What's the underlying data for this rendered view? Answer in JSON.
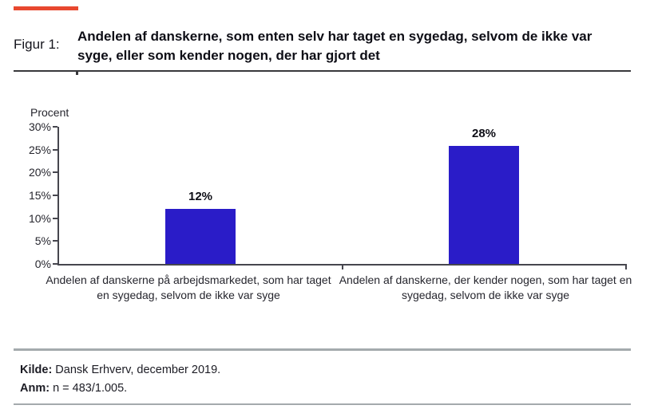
{
  "figure": {
    "label": "Figur 1:",
    "title": "Andelen af danskerne, som enten selv har taget en sygedag, selvom de ikke var syge, eller som kender nogen, der har gjort det"
  },
  "chart_data": {
    "type": "bar",
    "title": "Andelen af danskerne, som enten selv har taget en sygedag, selvom de ikke var syge, eller som kender nogen, der har gjort det",
    "ylabel": "Procent",
    "xlabel": "",
    "categories": [
      "Andelen af danskerne på arbejdsmarkedet, som har taget en sygedag, selvom de ikke var syge",
      "Andelen af danskerne, der kender nogen, som har taget en sygedag, selvom de ikke var syge"
    ],
    "values": [
      12,
      28
    ],
    "value_labels": [
      "12%",
      "28%"
    ],
    "y_ticks": [
      "30%",
      "25%",
      "20%",
      "15%",
      "10%",
      "5%",
      "0%"
    ],
    "ylim": [
      0,
      30
    ],
    "grid": false,
    "legend_position": "none",
    "bar_color": "#2a1cc8"
  },
  "footer": {
    "source_label": "Kilde:",
    "source_text": " Dansk Erhverv, december 2019.",
    "note_label": "Anm:",
    "note_text": " n = 483/1.005."
  },
  "colors": {
    "accent_red": "#e8482f",
    "bar_blue": "#2a1cc8",
    "axis_line": "#46464e",
    "header_rule": "#38383c",
    "footer_rule": "#a4aaad",
    "text_dark": "#0e0e16"
  }
}
